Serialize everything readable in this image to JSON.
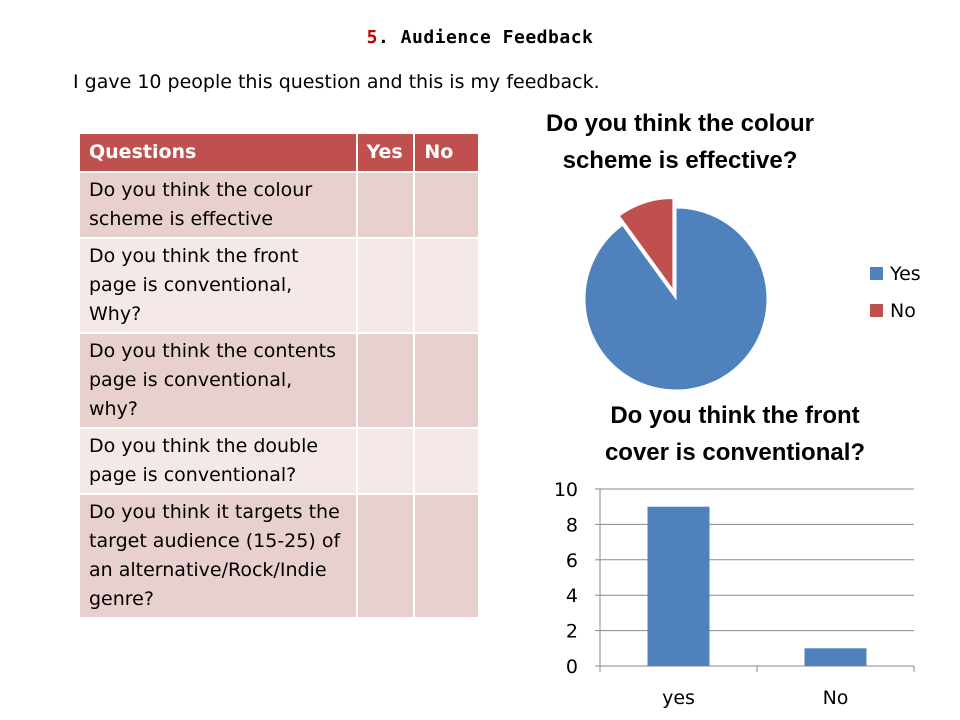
{
  "heading": {
    "number": "5",
    "text": ". Audience Feedback"
  },
  "intro": "I gave 10 people this question and this is my feedback.",
  "table": {
    "headers": [
      "Questions",
      "Yes",
      "No"
    ],
    "rows": [
      {
        "question": "Do you think the colour scheme is effective",
        "yes": "",
        "no": ""
      },
      {
        "question": "Do you think the front page is conventional, Why?",
        "yes": "",
        "no": ""
      },
      {
        "question": "Do you think the contents page is conventional, why?",
        "yes": "",
        "no": ""
      },
      {
        "question": "Do you think the double page is conventional?",
        "yes": "",
        "no": ""
      },
      {
        "question": "Do you think it targets the target audience (15-25)  of an alternative/Rock/Indie genre?",
        "yes": "",
        "no": ""
      }
    ]
  },
  "chart_data": [
    {
      "type": "pie",
      "title": "Do you think the colour scheme is effective?",
      "categories": [
        "Yes",
        "No"
      ],
      "values": [
        9,
        1
      ],
      "colors": [
        "#4f81bd",
        "#c0504d"
      ],
      "legend": "right"
    },
    {
      "type": "bar",
      "title": "Do you think the front cover is conventional?",
      "categories": [
        "yes",
        "No"
      ],
      "values": [
        9,
        1
      ],
      "ylim": [
        0,
        10
      ],
      "yticks": [
        "0",
        "2",
        "4",
        "6",
        "8",
        "10"
      ],
      "grid": true,
      "color": "#4f81bd"
    }
  ]
}
